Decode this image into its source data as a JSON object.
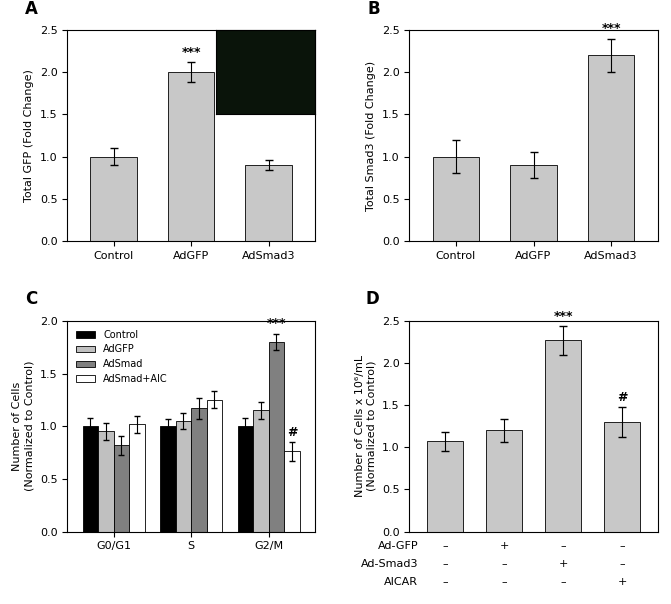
{
  "chart_data": [
    {
      "panel": "A",
      "type": "bar",
      "y_label": "Total GFP (Fold Change)",
      "categories": [
        "Control",
        "AdGFP",
        "AdSmad3"
      ],
      "values": [
        1.0,
        2.0,
        0.9
      ],
      "errors": [
        0.1,
        0.12,
        0.06
      ],
      "significance": [
        null,
        "***",
        null
      ],
      "color": "#c8c8c8",
      "ylim": [
        0.0,
        2.5
      ],
      "yticks": [
        0.0,
        0.5,
        1.0,
        1.5,
        2.0,
        2.5
      ]
    },
    {
      "panel": "B",
      "type": "bar",
      "y_label": "Total Smad3 (Fold Change)",
      "categories": [
        "Control",
        "AdGFP",
        "AdSmad3"
      ],
      "values": [
        1.0,
        0.9,
        2.2
      ],
      "errors": [
        0.2,
        0.15,
        0.2
      ],
      "significance": [
        null,
        null,
        "***"
      ],
      "color": "#c8c8c8",
      "ylim": [
        0.0,
        2.5
      ],
      "yticks": [
        0.0,
        0.5,
        1.0,
        1.5,
        2.0,
        2.5
      ]
    },
    {
      "panel": "C",
      "type": "bar",
      "y_label": "Number of Cells\n(Normalized to Control)",
      "categories": [
        "G0/G1",
        "S",
        "G2/M"
      ],
      "legend": "upper left",
      "ylim": [
        0.0,
        2.0
      ],
      "yticks": [
        0.0,
        0.5,
        1.0,
        1.5,
        2.0
      ],
      "series": [
        {
          "name": "Control",
          "color": "#000000",
          "values": [
            1.0,
            1.0,
            1.0
          ],
          "errors": [
            0.08,
            0.07,
            0.08
          ],
          "significance": [
            null,
            null,
            null
          ]
        },
        {
          "name": "AdGFP",
          "color": "#c0c0c0",
          "values": [
            0.95,
            1.05,
            1.15
          ],
          "errors": [
            0.08,
            0.08,
            0.08
          ],
          "significance": [
            null,
            null,
            null
          ]
        },
        {
          "name": "AdSmad",
          "color": "#808080",
          "values": [
            0.82,
            1.17,
            1.8
          ],
          "errors": [
            0.09,
            0.1,
            0.08
          ],
          "significance": [
            null,
            null,
            "***"
          ]
        },
        {
          "name": "AdSmad+AIC",
          "color": "#ffffff",
          "values": [
            1.02,
            1.25,
            0.76
          ],
          "errors": [
            0.08,
            0.08,
            0.09
          ],
          "significance": [
            null,
            null,
            "#"
          ]
        }
      ]
    },
    {
      "panel": "D",
      "type": "bar",
      "y_label": "Number of Cells x 10⁶/mL\n(Normalized to Control)",
      "categories": [
        null,
        null,
        null,
        null
      ],
      "values": [
        1.07,
        1.2,
        2.27,
        1.3
      ],
      "errors": [
        0.11,
        0.14,
        0.17,
        0.18
      ],
      "significance": [
        null,
        null,
        "***",
        "#"
      ],
      "color": "#c8c8c8",
      "ylim": [
        0.0,
        2.5
      ],
      "yticks": [
        0.0,
        0.5,
        1.0,
        1.5,
        2.0,
        2.5
      ],
      "conditions": [
        {
          "label": "Ad-GFP",
          "marks": [
            "–",
            "+",
            "–",
            "–"
          ]
        },
        {
          "label": "Ad-Smad3",
          "marks": [
            "–",
            "–",
            "+",
            "–"
          ]
        },
        {
          "label": "AICAR",
          "marks": [
            "–",
            "–",
            "–",
            "+"
          ]
        }
      ]
    }
  ]
}
